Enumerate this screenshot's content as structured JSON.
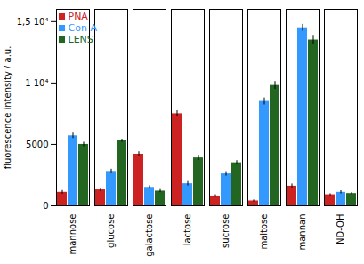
{
  "chart_data": {
    "type": "bar",
    "categories": [
      "mannose",
      "glucose",
      "galactose",
      "lactose",
      "sucrose",
      "maltose",
      "mannan",
      "ND-OH"
    ],
    "series": [
      {
        "name": "PNA",
        "color": "#cc2222",
        "values": [
          1100,
          1300,
          4200,
          7500,
          800,
          400,
          1600,
          900
        ],
        "errors": [
          150,
          150,
          200,
          250,
          100,
          80,
          180,
          80
        ]
      },
      {
        "name": "Con A",
        "color": "#3399ff",
        "values": [
          5700,
          2800,
          1500,
          1800,
          2600,
          8500,
          14500,
          1100
        ],
        "errors": [
          220,
          180,
          130,
          180,
          180,
          280,
          280,
          130
        ]
      },
      {
        "name": "LENS",
        "color": "#226622",
        "values": [
          5000,
          5300,
          1200,
          3900,
          3500,
          9800,
          13500,
          1000
        ],
        "errors": [
          180,
          130,
          130,
          220,
          180,
          320,
          380,
          80
        ]
      }
    ],
    "ylabel": "fluorescence intensity / a.u.",
    "ylim": [
      0,
      16000
    ],
    "yticks": [
      0,
      5000,
      {
        "value": 10000,
        "label": "1 10⁴"
      },
      {
        "value": 15000,
        "label": "1,5 10⁴"
      }
    ],
    "legend": "upper left",
    "grid": false
  }
}
